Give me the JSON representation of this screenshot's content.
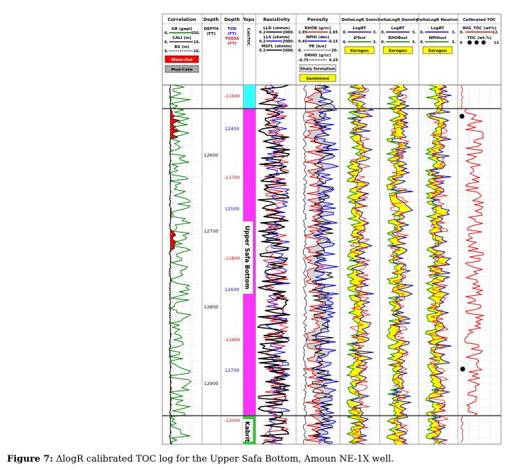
{
  "header": {
    "track_titles": [
      "Correlation",
      "Depth",
      "Depth",
      "Tops",
      "Resistivity",
      "Porosity",
      "DeltaLogR Sonic",
      "DeltaLogR Density",
      "DeltaLogR Neutron",
      "Calibrated TOC"
    ],
    "correlation": {
      "gr": {
        "name": "GR (gapi)",
        "min": "0.",
        "max": "150."
      },
      "cali": {
        "name": "CALI (in)",
        "min": "6.",
        "max": "16."
      },
      "bs": {
        "name": "BS (in)",
        "min": "6.",
        "max": "16."
      },
      "washout_label": "Wash-Out",
      "mudcake_label": "Mud-Cake"
    },
    "depth_md": {
      "line1": "DEPTH",
      "line2": "(FT)"
    },
    "depth_tvd": {
      "tvd": "TVD",
      "tvd_unit": "(FT)",
      "tvdss": "TVDSS",
      "tvdss_unit": "(FT)"
    },
    "tops": {
      "label": "CalcTOC"
    },
    "resistivity": {
      "lld": {
        "name": "LLD (ohmm)",
        "min": "0.2",
        "max": "2000."
      },
      "lls": {
        "name": "LLS (ohmm)",
        "min": "0.2",
        "max": "2000."
      },
      "msfl": {
        "name": "MSFL (ohmm)",
        "min": "0.2",
        "max": "2000."
      }
    },
    "porosity": {
      "rhob": {
        "name": "RHOB (g/cc)",
        "min": "1.95",
        "max": "2.95"
      },
      "nphi": {
        "name": "NPHI (dec)",
        "min": "0.45",
        "max": "-0.15"
      },
      "pe": {
        "name": "PE (b/e)",
        "min": "0.",
        "max": "20."
      },
      "drho": {
        "name": "DRHO (g/cc)",
        "min": "-0.75",
        "max": "0.25"
      },
      "shaly_label": "Shaly formation",
      "sandstone_label": "Sandstone"
    },
    "sonic": {
      "logrt": "LogRT",
      "logrt_min": "0.",
      "logrt_max": "3.",
      "ovl": "DTovl",
      "ovl_min": "0.",
      "ovl_max": "3.",
      "kerogen": "Kerogen"
    },
    "density": {
      "logrt": "LogRT",
      "logrt_min": "0.",
      "logrt_max": "3.",
      "ovl": "RHOBovl",
      "ovl_min": "0.",
      "ovl_max": "3.",
      "kerogen": "Kerogen"
    },
    "neutron": {
      "logrt": "LogRT",
      "logrt_min": "0.",
      "logrt_max": "3.",
      "ovl": "NPHIovl",
      "ovl_min": "0.",
      "ovl_max": "3.",
      "kerogen": "Kerogen"
    },
    "toc": {
      "avg": "AVG_TOC (wt%)",
      "avg_min": "0.",
      "avg_max": "12.",
      "toc": "TOC (wt.%)",
      "toc_min": "0",
      "toc_max": "12"
    }
  },
  "depth_labels": {
    "md": [
      "12600",
      "12700",
      "12800",
      "12900"
    ],
    "tvd": [
      "12400",
      "12500",
      "12600",
      "12700"
    ],
    "tvdss": [
      "-11600",
      "-11700",
      "-11800",
      "-11900",
      "-12000"
    ]
  },
  "formations": {
    "upper": "Upper Safa Bottom",
    "lower": "Kabrit"
  },
  "colors": {
    "gr": "#008000",
    "cali": "#000000",
    "washout": "#ff0000",
    "mudcake": "#a9a9a9",
    "lld": "#000000",
    "lls": "#0000ff",
    "msfl": "#ff0000",
    "rhob": "#ff0000",
    "nphi": "#0000ff",
    "shaly": "#d3d3d3",
    "logrt": "#0000ff",
    "ovl": "#008000",
    "kerogen": "#ffff00",
    "toc": "#ff0000",
    "top_interval": "#ff33ff",
    "cyan_interval": "#33ffff",
    "kabrit": "#33cc33",
    "tvd_text": "#0000ff",
    "tvdss_text": "#ff0000"
  },
  "caption": {
    "label": "Figure 7:",
    "text": " ΔlogR calibrated TOC log for the Upper Safa Bottom, Amoun NE-1X well."
  }
}
